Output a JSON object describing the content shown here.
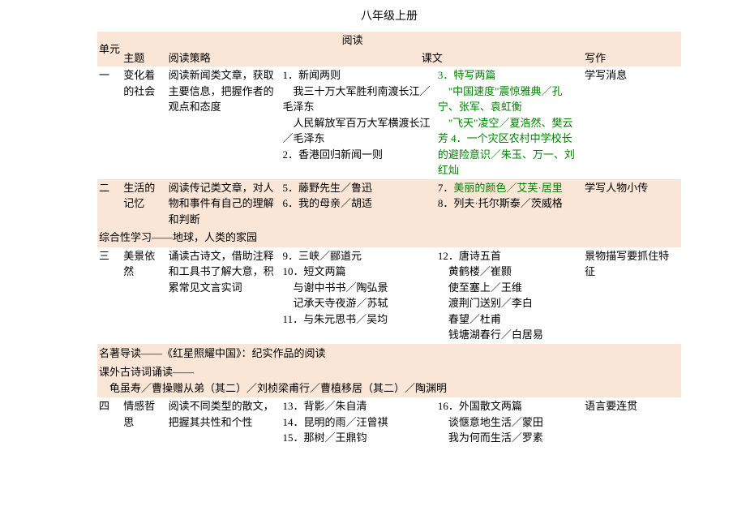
{
  "title": "八年级上册",
  "colors": {
    "stripe_bg": "#fae6d7",
    "text_green": "#008000",
    "text_black": "#000000",
    "page_bg": "#ffffff"
  },
  "typography": {
    "base_fontsize": 13,
    "title_fontsize": 14,
    "font_family": "SimSun"
  },
  "headers": {
    "unit": "单元",
    "reading": "阅读",
    "theme": "主题",
    "strategy": "阅读策略",
    "texts": "课文",
    "writing": "写作"
  },
  "units": [
    {
      "unit": "一",
      "theme": "变化着的社会",
      "strategy": "阅读新闻类文章，获取主要信息，把握作者的观点和态度",
      "texts_left": "1．新闻两则\n　我三十万大军胜利南渡长江／毛泽东\n　人民解放军百万大军横渡长江／毛泽东\n2．香港回归新闻一则",
      "texts_right": "3．特写两篇\n　\"中国速度\"震惊雅典／孔宁、张军、袁虹衡\n　\"飞天\"凌空／夏浩然、樊云芳 4．一个灾区农村中学校长的避险意识／朱玉、万一、刘红灿",
      "writing": "学写消息"
    },
    {
      "unit": "二",
      "theme": "生活的记忆",
      "strategy": "阅读传记类文章，对人物和事件有自己的理解和判断",
      "texts_left": "5．藤野先生／鲁迅\n6．我的母亲／胡适",
      "texts_right": "7．美丽的颜色／艾芙·居里\n8．列夫·托尔斯泰／茨威格",
      "writing": "学写人物小传"
    }
  ],
  "spanner1": "综合性学习——地球，人类的家园",
  "unit3": {
    "unit": "三",
    "theme": "美景依然",
    "strategy": "诵读古诗文，借助注释和工具书了解大意，积累常见文言实词",
    "texts_left": "9．三峡／郦道元\n10．短文两篇\n　与谢中书书／陶弘景\n　记承天寺夜游／苏轼\n11．与朱元思书／吴均",
    "texts_right": "12．唐诗五首\n　黄鹤楼／崔颢\n　使至塞上／王维\n　渡荆门送别／李白\n　春望／杜甫\n　钱塘湖春行／白居易",
    "writing": "景物描写要抓住特征"
  },
  "spanner2a": "名著导读——《红星照耀中国》：纪实作品的阅读",
  "spanner2b": "课外古诗词诵读——",
  "spanner2c": "　龟虽寿／曹操赠从弟（其二）／刘桢梁甫行／曹植移居（其二）／陶渊明",
  "unit4": {
    "unit": "四",
    "theme": "情感哲思",
    "strategy": "阅读不同类型的散文，把握其共性和个性",
    "texts_left": "13．背影／朱自清\n14．昆明的雨／汪曾祺\n15．那树／王鼎钧",
    "texts_right": "16．外国散文两篇\n　谈惬意地生活／蒙田\n　我为何而生活／罗素",
    "writing": "语言要连贯"
  }
}
